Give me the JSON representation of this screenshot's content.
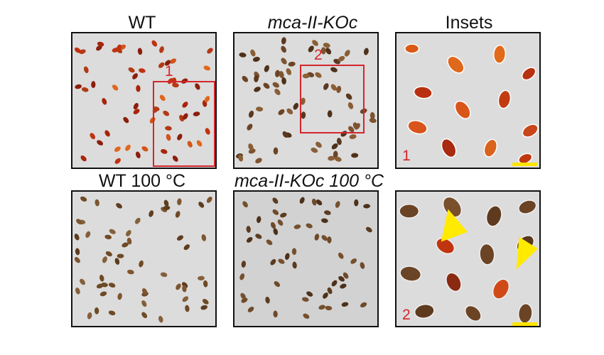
{
  "panels": {
    "wt": {
      "label": "WT",
      "box_label": "1"
    },
    "ko": {
      "label": "mca-II-KOc",
      "box_label": "2"
    },
    "insets": {
      "label": "Insets"
    },
    "wt100": {
      "label": "WT 100 °C"
    },
    "ko100": {
      "label": "mca-II-KOc 100 °C"
    },
    "inset1": {
      "number": "1"
    },
    "inset2": {
      "number": "2"
    }
  },
  "colors": {
    "annotation_red": "#d6252c",
    "arrow_yellow": "#ffea00",
    "scale_bar_yellow": "#ffe400",
    "seed_red": "#b8300f",
    "seed_orange": "#d95a14",
    "seed_brown": "#6b4426",
    "panel_background": "#dcdcdc"
  },
  "icons": [
    "arrowhead-icon",
    "arrowhead-icon"
  ]
}
